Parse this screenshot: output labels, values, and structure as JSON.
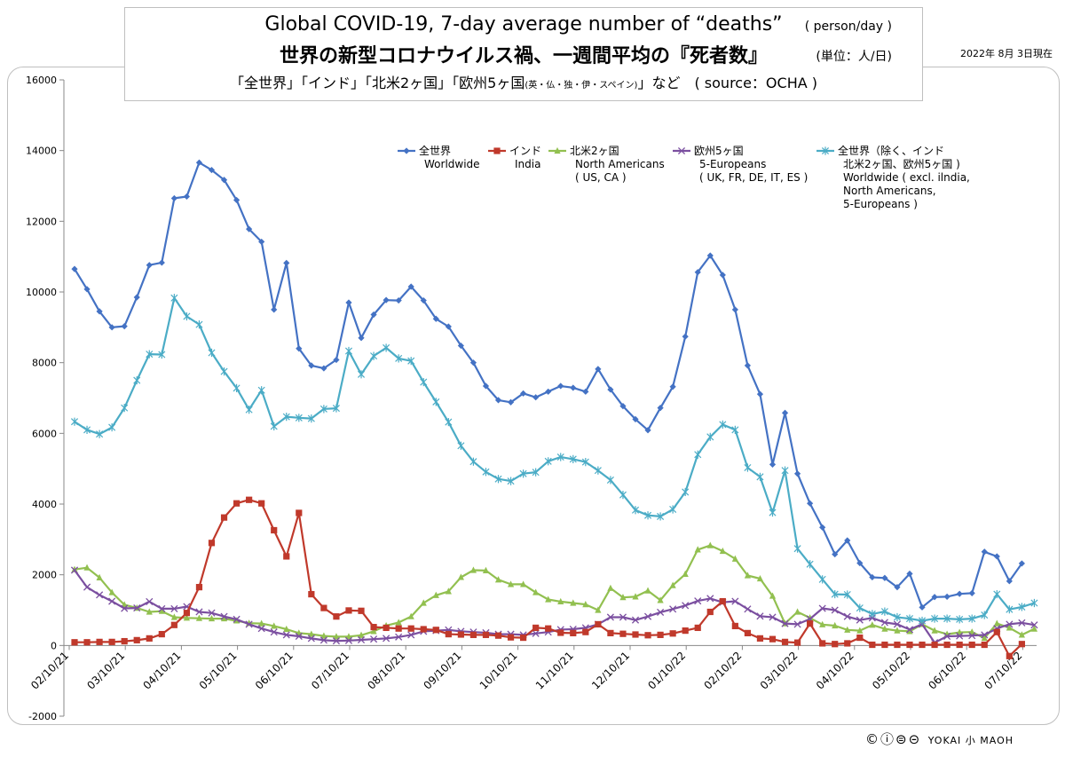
{
  "header": {
    "title_en": "Global COVID-19, 7-day average number of “deaths”",
    "unit_en": "( person/day )",
    "title_jp": "世界の新型コロナウイルス禍、一週間平均の『死者数』",
    "unit_jp": "(単位：人/日)",
    "subtitle": "「全世界」「インド」「北米2ヶ国」「欧州5ヶ国",
    "subtitle_small": "(英・仏・独・伊・スペイン)",
    "subtitle_tail": "」など　( source：OCHA )",
    "date": "2022年 8月 3日現在"
  },
  "footer": {
    "license_icons": "©ⓘ⊜⊝",
    "author": "YOKAI 小 MAOH"
  },
  "chart_data": {
    "type": "line",
    "ylim": [
      -2000,
      16000
    ],
    "yticks": [
      -2000,
      0,
      2000,
      4000,
      6000,
      8000,
      10000,
      12000,
      14000,
      16000
    ],
    "xlabels": [
      "02/10/21",
      "03/10/21",
      "04/10/21",
      "05/10/21",
      "06/10/21",
      "07/10/21",
      "08/10/21",
      "09/10/21",
      "10/10/21",
      "11/10/21",
      "12/10/21",
      "01/10/22",
      "02/10/22",
      "03/10/22",
      "04/10/22",
      "05/10/22",
      "06/10/22",
      "07/10/22"
    ],
    "points_per_label": 4.5,
    "grid": false,
    "legend": [
      {
        "lines": [
          "全世界",
          "Worldwide"
        ]
      },
      {
        "lines": [
          "インド",
          "India"
        ]
      },
      {
        "lines": [
          "北米2ヶ国",
          "North Americans",
          "( US, CA )"
        ]
      },
      {
        "lines": [
          "欧州5ヶ国",
          "5-Europeans",
          "( UK, FR, DE, IT, ES )"
        ]
      },
      {
        "lines": [
          "全世界（除く、インド",
          "北米2ヶ国、欧州5ヶ国 )",
          "Worldwide ( excl. ilndia,",
          "North Americans,",
          "5-Europeans )"
        ]
      }
    ],
    "series": [
      {
        "color": "#4472c4",
        "marker": "diamond",
        "values": [
          10650,
          10080,
          9450,
          9000,
          9030,
          9850,
          10760,
          10830,
          12650,
          12700,
          13660,
          13450,
          13170,
          12600,
          11780,
          11420,
          9500,
          10820,
          8400,
          7920,
          7840,
          8080,
          9700,
          8700,
          9360,
          9770,
          9760,
          10150,
          9760,
          9240,
          9020,
          8480,
          8000,
          7340,
          6940,
          6880,
          7130,
          7020,
          7180,
          7340,
          7290,
          7180,
          7820,
          7240,
          6770,
          6400,
          6090,
          6720,
          7320,
          8740,
          10560,
          11030,
          10480,
          9500,
          7920,
          7110,
          5120,
          6580,
          4860,
          4020,
          3340,
          2580,
          2970,
          2330,
          1930,
          1910,
          1650,
          2030,
          1080,
          1370,
          1380,
          1460,
          1480,
          2650,
          2520,
          1820,
          2320
        ]
      },
      {
        "color": "#c0392b",
        "marker": "square",
        "values": [
          90,
          90,
          100,
          100,
          120,
          150,
          200,
          320,
          580,
          920,
          1650,
          2900,
          3620,
          4020,
          4120,
          4020,
          3260,
          2520,
          3750,
          1450,
          1060,
          820,
          990,
          980,
          520,
          500,
          480,
          480,
          460,
          440,
          320,
          310,
          300,
          300,
          280,
          230,
          220,
          500,
          480,
          360,
          350,
          380,
          600,
          350,
          330,
          310,
          290,
          300,
          340,
          420,
          500,
          950,
          1250,
          550,
          350,
          200,
          180,
          100,
          80,
          620,
          60,
          40,
          60,
          220,
          20,
          20,
          20,
          20,
          20,
          20,
          20,
          20,
          20,
          20,
          380,
          -300,
          40
        ]
      },
      {
        "color": "#92c050",
        "marker": "triangle",
        "values": [
          2150,
          2200,
          1920,
          1500,
          1150,
          1060,
          950,
          970,
          800,
          780,
          770,
          760,
          760,
          700,
          630,
          620,
          550,
          460,
          350,
          320,
          270,
          250,
          250,
          290,
          400,
          560,
          650,
          820,
          1200,
          1420,
          1530,
          1930,
          2130,
          2120,
          1860,
          1730,
          1730,
          1500,
          1300,
          1240,
          1200,
          1160,
          1000,
          1620,
          1360,
          1380,
          1550,
          1280,
          1700,
          2020,
          2710,
          2830,
          2670,
          2450,
          1980,
          1890,
          1400,
          620,
          950,
          780,
          590,
          560,
          440,
          420,
          580,
          470,
          420,
          400,
          600,
          420,
          320,
          370,
          380,
          210,
          620,
          500,
          300,
          470
        ]
      },
      {
        "color": "#7b4fa0",
        "marker": "x",
        "values": [
          2130,
          1650,
          1430,
          1250,
          1050,
          1060,
          1240,
          1040,
          1040,
          1100,
          950,
          920,
          820,
          740,
          600,
          480,
          380,
          300,
          260,
          200,
          150,
          130,
          140,
          160,
          180,
          200,
          240,
          300,
          400,
          420,
          440,
          400,
          380,
          360,
          320,
          320,
          300,
          340,
          380,
          450,
          460,
          500,
          600,
          800,
          800,
          720,
          820,
          940,
          1030,
          1130,
          1260,
          1330,
          1220,
          1250,
          1030,
          830,
          800,
          620,
          600,
          750,
          1050,
          1000,
          820,
          720,
          780,
          650,
          600,
          450,
          600,
          80,
          260,
          270,
          280,
          300,
          480,
          600,
          640,
          580
        ]
      },
      {
        "color": "#4bacc6",
        "marker": "star",
        "values": [
          6330,
          6100,
          5980,
          6170,
          6720,
          7500,
          8240,
          8230,
          9830,
          9310,
          9080,
          8280,
          7750,
          7280,
          6670,
          7220,
          6200,
          6470,
          6440,
          6420,
          6690,
          6710,
          8330,
          7670,
          8190,
          8420,
          8120,
          8050,
          7450,
          6890,
          6320,
          5650,
          5200,
          4910,
          4710,
          4650,
          4860,
          4900,
          5210,
          5330,
          5270,
          5190,
          4950,
          4680,
          4260,
          3830,
          3680,
          3650,
          3850,
          4340,
          5400,
          5900,
          6250,
          6100,
          5030,
          4770,
          3760,
          4950,
          2740,
          2300,
          1870,
          1450,
          1440,
          1060,
          890,
          960,
          800,
          760,
          700,
          760,
          760,
          740,
          760,
          860,
          1450,
          1020,
          1090,
          1200
        ]
      }
    ]
  }
}
